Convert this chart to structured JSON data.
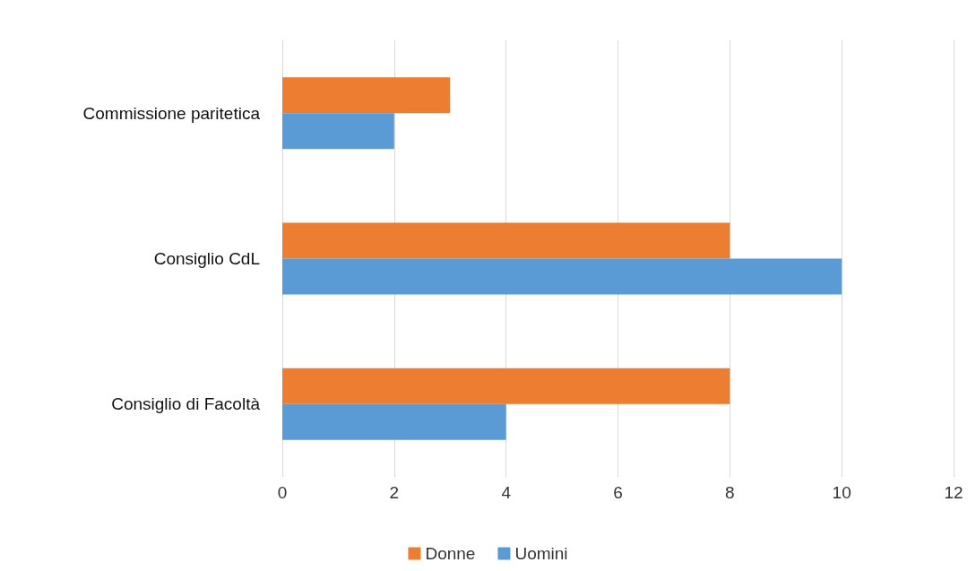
{
  "chart_data": {
    "type": "bar",
    "orientation": "horizontal",
    "categories": [
      "Commissione paritetica",
      "Consiglio CdL",
      "Consiglio di Facoltà"
    ],
    "series": [
      {
        "name": "Donne",
        "color": "#ed7d31",
        "values": [
          3,
          8,
          8
        ]
      },
      {
        "name": "Uomini",
        "color": "#5b9bd5",
        "values": [
          2,
          10,
          4
        ]
      }
    ],
    "xlim": [
      0,
      12
    ],
    "xticks": [
      0,
      2,
      4,
      6,
      8,
      10,
      12
    ],
    "grid": "x",
    "legend": "bottom"
  }
}
